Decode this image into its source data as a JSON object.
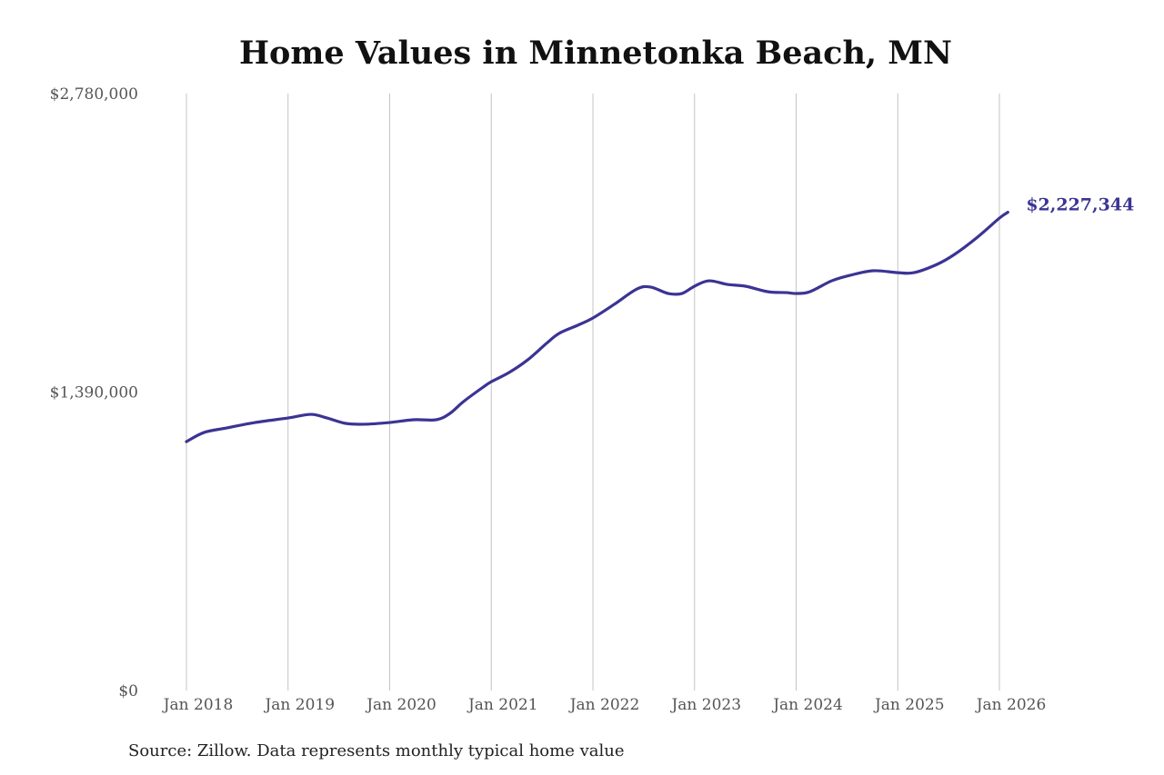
{
  "chart_data": {
    "type": "line",
    "title": "Home Values in Minnetonka Beach, MN",
    "source": "Source: Zillow. Data represents monthly typical home value",
    "xlabel": "",
    "ylabel": "",
    "x_unit": "months since Jan 2018",
    "xlim": [
      0,
      97
    ],
    "ylim": [
      0,
      2780000
    ],
    "grid": "vertical",
    "x_ticks": [
      {
        "x": 0,
        "label": "Jan 2018"
      },
      {
        "x": 12,
        "label": "Jan 2019"
      },
      {
        "x": 24,
        "label": "Jan 2020"
      },
      {
        "x": 36,
        "label": "Jan 2021"
      },
      {
        "x": 48,
        "label": "Jan 2022"
      },
      {
        "x": 60,
        "label": "Jan 2023"
      },
      {
        "x": 72,
        "label": "Jan 2024"
      },
      {
        "x": 84,
        "label": "Jan 2025"
      },
      {
        "x": 96,
        "label": "Jan 2026"
      }
    ],
    "y_ticks": [
      {
        "y": 0,
        "label": "$0"
      },
      {
        "y": 1390000,
        "label": "$1,390,000"
      },
      {
        "y": 2780000,
        "label": "$2,780,000"
      }
    ],
    "color": "#3b3494",
    "series": [
      {
        "name": "Typical home value",
        "x": [
          0,
          2.1,
          4.8,
          8.1,
          12,
          14.7,
          16.6,
          18.8,
          20.9,
          24,
          26.8,
          29.5,
          31.1,
          32.7,
          34.9,
          36,
          38.1,
          40.3,
          42.5,
          44,
          46.2,
          48,
          50.5,
          53.2,
          54.8,
          56.9,
          58.5,
          60,
          61.7,
          63.9,
          66,
          68.7,
          70.9,
          72,
          73.6,
          76.2,
          78.4,
          81.1,
          84,
          85.9,
          88.6,
          90.7,
          93.4,
          96,
          97
        ],
        "values": [
          1159000,
          1202000,
          1223000,
          1248000,
          1269000,
          1286000,
          1269000,
          1244000,
          1240000,
          1248000,
          1261000,
          1261000,
          1290000,
          1345000,
          1409000,
          1438000,
          1481000,
          1540000,
          1616000,
          1663000,
          1701000,
          1735000,
          1798000,
          1870000,
          1879000,
          1849000,
          1849000,
          1883000,
          1908000,
          1891000,
          1883000,
          1857000,
          1853000,
          1849000,
          1857000,
          1908000,
          1934000,
          1955000,
          1946000,
          1946000,
          1984000,
          2031000,
          2111000,
          2200000,
          2227344
        ]
      }
    ],
    "end_label": "$2,227,344"
  }
}
